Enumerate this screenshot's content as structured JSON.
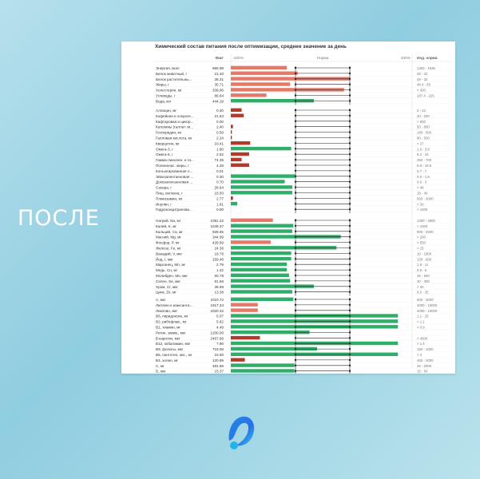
{
  "side_label": "ПОСЛЕ",
  "logo": {
    "icon": "wave-logo-icon",
    "color": "#2a6ee8"
  },
  "chart_data": {
    "type": "bar",
    "title": "Химический состав питания после оптимизации, среднее значение за день",
    "header": {
      "fact": "Факт",
      "left_pct": "-100%",
      "center": "Норма",
      "right_pct": "100%",
      "norm": "Инд. норма"
    },
    "colors": {
      "deficit": "#b23a2a",
      "normal": "#2fae6a",
      "excess": "#e57968"
    },
    "groups": [
      [
        {
          "name": "Энергия, ккал",
          "fact": "956.98",
          "level": 0.52,
          "status": "excess",
          "norm": "1363 - 1636"
        },
        {
          "name": "Белок животный, г",
          "fact": "21.40",
          "level": 0.62,
          "status": "excess",
          "norm": "29 - 32"
        },
        {
          "name": "Белок растительны...",
          "fact": "38.31",
          "level": 1.1,
          "status": "excess",
          "norm": "29 - 32"
        },
        {
          "name": "Жиры, г",
          "fact": "35.71",
          "level": 0.55,
          "status": "excess",
          "norm": "48.4 - 55"
        },
        {
          "name": "Холестерин, мг",
          "fact": "339.06",
          "level": 1.05,
          "status": "excess",
          "norm": "< 300"
        },
        {
          "name": "Углеводы, г",
          "fact": "86.64",
          "level": 0.33,
          "status": "excess",
          "norm": "187.4 - 225"
        },
        {
          "name": "Вода, мл",
          "fact": "444.19",
          "level": 0.77,
          "status": "normal",
          "norm": ""
        }
      ],
      [
        {
          "name": "Аллицин, мг",
          "fact": "0.40",
          "level": 0.1,
          "status": "deficit",
          "norm": "2 - 12"
        },
        {
          "name": "Кофейная и хлороге...",
          "fact": "21.63",
          "level": 0.12,
          "status": "deficit",
          "norm": "20 - 200"
        },
        {
          "name": "Кафтаровая и цикор...",
          "fact": "0.00",
          "level": 0,
          "status": "deficit",
          "norm": "< 800"
        },
        {
          "name": "Катехины (галлат эп...",
          "fact": "2.40",
          "level": 0.02,
          "status": "deficit",
          "norm": "50 - 800"
        },
        {
          "name": "Гесперидин, мг",
          "fact": "0.59",
          "level": 0.01,
          "status": "deficit",
          "norm": "180 - 500"
        },
        {
          "name": "Галловая кислота, мг",
          "fact": "2.24",
          "level": 0.01,
          "status": "deficit",
          "norm": "90 - 500"
        },
        {
          "name": "Кверцетин, мг",
          "fact": "10.41",
          "level": 0.18,
          "status": "deficit",
          "norm": "> 27"
        },
        {
          "name": "Омега-3, г",
          "fact": "1.80",
          "level": 0.56,
          "status": "normal",
          "norm": "1.6 - 3.8"
        },
        {
          "name": "Омега-6, г",
          "fact": "2.62",
          "level": 0.17,
          "status": "deficit",
          "norm": "8.2 - 16"
        },
        {
          "name": "Гамма-линолен. к-та...",
          "fact": "74.35",
          "level": 0.1,
          "status": "deficit",
          "norm": "450 - 700"
        },
        {
          "name": "Полиненас. жиры, г",
          "fact": "4.29",
          "level": 0.17,
          "status": "deficit",
          "norm": "9.9 - 19.6"
        },
        {
          "name": "Конъюгированная л...",
          "fact": "0.01",
          "level": 0,
          "status": "deficit",
          "norm": "0.7 - 7"
        },
        {
          "name": "Эйкозапентаеновая ...",
          "fact": "0.30",
          "level": 0.6,
          "status": "normal",
          "norm": "0.5 - 1.8"
        },
        {
          "name": "Докозагексаеновая ...",
          "fact": "0.70",
          "level": 0.5,
          "status": "normal",
          "norm": "0.6 - 3"
        },
        {
          "name": "Сахара, г",
          "fact": "28.64",
          "level": 0.57,
          "status": "normal",
          "norm": "< 48"
        },
        {
          "name": "Пищ. волокна, г",
          "fact": "23.50",
          "level": 0.57,
          "status": "normal",
          "norm": "18 - 40"
        },
        {
          "name": "Пликозамин, мг",
          "fact": "2.77",
          "level": 0.02,
          "status": "deficit",
          "norm": "500 - 3000"
        },
        {
          "name": "Инулин, г",
          "fact": "1.81",
          "level": 0.06,
          "status": "normal",
          "norm": "< 20"
        },
        {
          "name": "Гидроксицитринова...",
          "fact": "0.00",
          "level": 0,
          "status": "normal",
          "norm": "< 1000"
        }
      ],
      [
        {
          "name": "Натрий, Na, мг",
          "fact": "1091.42",
          "level": 0.39,
          "status": "excess",
          "norm": "1300 - 3900"
        },
        {
          "name": "Калий, K, мг",
          "fact": "1049.37",
          "level": 0.58,
          "status": "normal",
          "norm": "< 1000"
        },
        {
          "name": "Кальций, Ca, мг",
          "fact": "928.65",
          "level": 0.57,
          "status": "normal",
          "norm": "900 - 2500"
        },
        {
          "name": "Магний, Mg, мг",
          "fact": "344.09",
          "level": 1.02,
          "status": "normal",
          "norm": "> 200"
        },
        {
          "name": "Фосфор, P, мг",
          "fact": "428.69",
          "level": 0.37,
          "status": "excess",
          "norm": "> 550"
        },
        {
          "name": "Железо, Fe, мг",
          "fact": "24.36",
          "level": 0.98,
          "status": "normal",
          "norm": "> 15"
        },
        {
          "name": "Ванадий, V, мкг",
          "fact": "19.76",
          "level": 0.56,
          "status": "normal",
          "norm": "10 - 1800"
        },
        {
          "name": "Йод, I, мкг",
          "fact": "159.48",
          "level": 0.56,
          "status": "normal",
          "norm": "130 - 600"
        },
        {
          "name": "Марганец, Mn, мг",
          "fact": "2.79",
          "level": 0.52,
          "status": "normal",
          "norm": "1.8 - 11"
        },
        {
          "name": "Медь, Cu, мг",
          "fact": "1.42",
          "level": 0.52,
          "status": "normal",
          "norm": "0.9 - 5"
        },
        {
          "name": "Молибден, Mo, мкг",
          "fact": "50.78",
          "level": 0.54,
          "status": "normal",
          "norm": "45 - 600"
        },
        {
          "name": "Селен, Se, мкг",
          "fact": "81.66",
          "level": 0.55,
          "status": "normal",
          "norm": "30 - 300"
        },
        {
          "name": "Хром, Cr, мкг",
          "fact": "39.98",
          "level": 0.77,
          "status": "normal",
          "norm": "> 30"
        },
        {
          "name": "Цинк, Zn, мг",
          "fact": "13.38",
          "level": 0.57,
          "status": "normal",
          "norm": "9.5 - 25"
        }
      ],
      [
        {
          "name": "А, мкг",
          "fact": "1010.72",
          "level": 0.58,
          "status": "normal",
          "norm": "600 - 3000"
        },
        {
          "name": "Лютеин и зеаксанти...",
          "fact": "1917.34",
          "level": 0.25,
          "status": "excess",
          "norm": "4000 - 10000"
        },
        {
          "name": "Ликопин, мкг",
          "fact": "2020.32",
          "level": 0.25,
          "status": "excess",
          "norm": "4000 - 10000"
        },
        {
          "name": "В6, пиридоксин, мг",
          "fact": "5.07",
          "level": 1.55,
          "status": "normal",
          "norm": "1.1 - 25"
        },
        {
          "name": "В2, рибофлав., мг",
          "fact": "5.62",
          "level": 1.55,
          "status": "normal",
          "norm": "> 1.1"
        },
        {
          "name": "В1, тиамин, мг",
          "fact": "4.49",
          "level": 1.55,
          "status": "normal",
          "norm": "> 0.9"
        },
        {
          "name": "Ретин. эквив., мкг",
          "fact": "1200.00",
          "level": 0.73,
          "status": "normal",
          "norm": ""
        },
        {
          "name": "β-каротин, мкг",
          "fact": "2467.96",
          "level": 0.27,
          "status": "deficit",
          "norm": "> 4500"
        },
        {
          "name": "В12, кобаламин, мкг",
          "fact": "7.90",
          "level": 1.55,
          "status": "normal",
          "norm": "> 1.4"
        },
        {
          "name": "В9, фолаты, мкг",
          "fact": "719.08",
          "level": 0.8,
          "status": "normal",
          "norm": "150 - 1000"
        },
        {
          "name": "В5, пантотен. кис., мг",
          "fact": "23.90",
          "level": 1.55,
          "status": "normal",
          "norm": "> 4"
        },
        {
          "name": "В4, холин, мг",
          "fact": "120.89",
          "level": 0.13,
          "status": "deficit",
          "norm": "450 - 2000"
        },
        {
          "name": "С, мг",
          "fact": "481.68",
          "level": 0.59,
          "status": "normal",
          "norm": "45 - 2000"
        },
        {
          "name": "D, мкг",
          "fact": "23.37",
          "level": 0.59,
          "status": "normal",
          "norm": "15 - 50"
        }
      ]
    ]
  }
}
